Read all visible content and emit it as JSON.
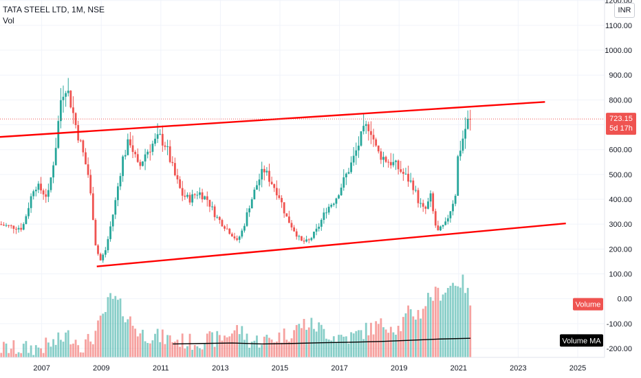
{
  "header": {
    "title": "TATA STEEL LTD, 1M, NSE",
    "volume_label": "Vol"
  },
  "currency_button": "INR",
  "colors": {
    "up": "#26a69a",
    "down": "#ef5350",
    "trendline": "#ff0000",
    "price_line": "#ef5350",
    "volume_ma": "#000000"
  },
  "price_badge": {
    "value": "723.15",
    "countdown": "5d 17h"
  },
  "volume_badge": "Volume",
  "volume_ma_badge": "Volume MA",
  "chart_data": {
    "type": "candlestick",
    "title": "TATA STEEL LTD, 1M, NSE",
    "x_ticks": [
      "2007",
      "2009",
      "2011",
      "2013",
      "2015",
      "2017",
      "2019",
      "2021",
      "2023",
      "2025"
    ],
    "x_range": [
      2005.6,
      2025.9
    ],
    "y_ticks": [
      1200,
      1100,
      1000,
      900,
      800,
      700,
      600,
      500,
      400,
      300,
      200,
      100,
      0,
      -100,
      -200
    ],
    "y_tick_labels": [
      "1200.00",
      "1100.00",
      "1000.00",
      "900.00",
      "800.00",
      "700.00",
      "600.00",
      "500.00",
      "400.00",
      "300.00",
      "200.00",
      "100.00",
      "0.00",
      "-100.00",
      "-200.00"
    ],
    "y_range": [
      -236,
      1202
    ],
    "last_price": 723.15,
    "price_path": [
      [
        2005.6,
        300
      ],
      [
        2006.0,
        290
      ],
      [
        2006.4,
        285
      ],
      [
        2006.8,
        460
      ],
      [
        2007.0,
        440
      ],
      [
        2007.25,
        410
      ],
      [
        2007.5,
        600
      ],
      [
        2007.7,
        820
      ],
      [
        2007.85,
        860
      ],
      [
        2008.0,
        800
      ],
      [
        2008.2,
        690
      ],
      [
        2008.4,
        600
      ],
      [
        2008.6,
        500
      ],
      [
        2008.75,
        350
      ],
      [
        2008.85,
        220
      ],
      [
        2009.0,
        150
      ],
      [
        2009.2,
        200
      ],
      [
        2009.5,
        380
      ],
      [
        2009.75,
        560
      ],
      [
        2010.0,
        640
      ],
      [
        2010.3,
        520
      ],
      [
        2010.5,
        580
      ],
      [
        2010.75,
        620
      ],
      [
        2011.0,
        650
      ],
      [
        2011.2,
        620
      ],
      [
        2011.5,
        500
      ],
      [
        2011.75,
        420
      ],
      [
        2012.0,
        400
      ],
      [
        2012.3,
        430
      ],
      [
        2012.6,
        400
      ],
      [
        2012.9,
        330
      ],
      [
        2013.2,
        290
      ],
      [
        2013.5,
        250
      ],
      [
        2013.6,
        230
      ],
      [
        2013.8,
        280
      ],
      [
        2014.0,
        370
      ],
      [
        2014.3,
        470
      ],
      [
        2014.5,
        520
      ],
      [
        2014.75,
        470
      ],
      [
        2015.0,
        420
      ],
      [
        2015.25,
        330
      ],
      [
        2015.5,
        280
      ],
      [
        2015.75,
        230
      ],
      [
        2016.0,
        230
      ],
      [
        2016.3,
        280
      ],
      [
        2016.6,
        360
      ],
      [
        2016.9,
        400
      ],
      [
        2017.2,
        480
      ],
      [
        2017.5,
        560
      ],
      [
        2017.8,
        660
      ],
      [
        2018.0,
        700
      ],
      [
        2018.1,
        680
      ],
      [
        2018.3,
        590
      ],
      [
        2018.6,
        560
      ],
      [
        2018.9,
        540
      ],
      [
        2019.2,
        500
      ],
      [
        2019.5,
        460
      ],
      [
        2019.7,
        390
      ],
      [
        2019.9,
        350
      ],
      [
        2020.1,
        410
      ],
      [
        2020.25,
        300
      ],
      [
        2020.35,
        270
      ],
      [
        2020.6,
        300
      ],
      [
        2020.8,
        370
      ],
      [
        2020.95,
        430
      ],
      [
        2021.0,
        560
      ],
      [
        2021.15,
        630
      ],
      [
        2021.3,
        700
      ],
      [
        2021.4,
        723
      ]
    ],
    "volume_path": [
      [
        2005.6,
        -200
      ],
      [
        2006.5,
        -200
      ],
      [
        2007.0,
        -195
      ],
      [
        2007.5,
        -175
      ],
      [
        2007.8,
        -150
      ],
      [
        2008.0,
        -150
      ],
      [
        2008.4,
        -190
      ],
      [
        2008.75,
        -150
      ],
      [
        2009.0,
        -90
      ],
      [
        2009.3,
        0
      ],
      [
        2009.5,
        -10
      ],
      [
        2009.8,
        -60
      ],
      [
        2010.3,
        -140
      ],
      [
        2010.8,
        -150
      ],
      [
        2011.2,
        -160
      ],
      [
        2012.0,
        -175
      ],
      [
        2013.0,
        -160
      ],
      [
        2013.6,
        -120
      ],
      [
        2014.0,
        -170
      ],
      [
        2014.6,
        -165
      ],
      [
        2015.3,
        -140
      ],
      [
        2015.8,
        -100
      ],
      [
        2016.2,
        -110
      ],
      [
        2016.8,
        -150
      ],
      [
        2017.4,
        -155
      ],
      [
        2018.0,
        -120
      ],
      [
        2018.6,
        -100
      ],
      [
        2019.0,
        -120
      ],
      [
        2019.3,
        -60
      ],
      [
        2019.7,
        -60
      ],
      [
        2020.0,
        10
      ],
      [
        2020.3,
        20
      ],
      [
        2020.6,
        40
      ],
      [
        2020.9,
        70
      ],
      [
        2021.0,
        70
      ],
      [
        2021.2,
        60
      ],
      [
        2021.4,
        -20
      ]
    ],
    "volume_ma": [
      [
        2011.4,
        -182
      ],
      [
        2012.4,
        -180
      ],
      [
        2013.4,
        -178
      ],
      [
        2014.4,
        -182
      ],
      [
        2015.4,
        -180
      ],
      [
        2016.4,
        -177
      ],
      [
        2017.4,
        -175
      ],
      [
        2018.4,
        -172
      ],
      [
        2019.4,
        -167
      ],
      [
        2020.4,
        -162
      ],
      [
        2021.4,
        -159
      ]
    ],
    "trendlines": [
      {
        "from": [
          2005.6,
          651
        ],
        "to": [
          2023.9,
          792
        ]
      },
      {
        "from": [
          2008.85,
          130
        ],
        "to": [
          2024.6,
          303
        ]
      }
    ]
  }
}
